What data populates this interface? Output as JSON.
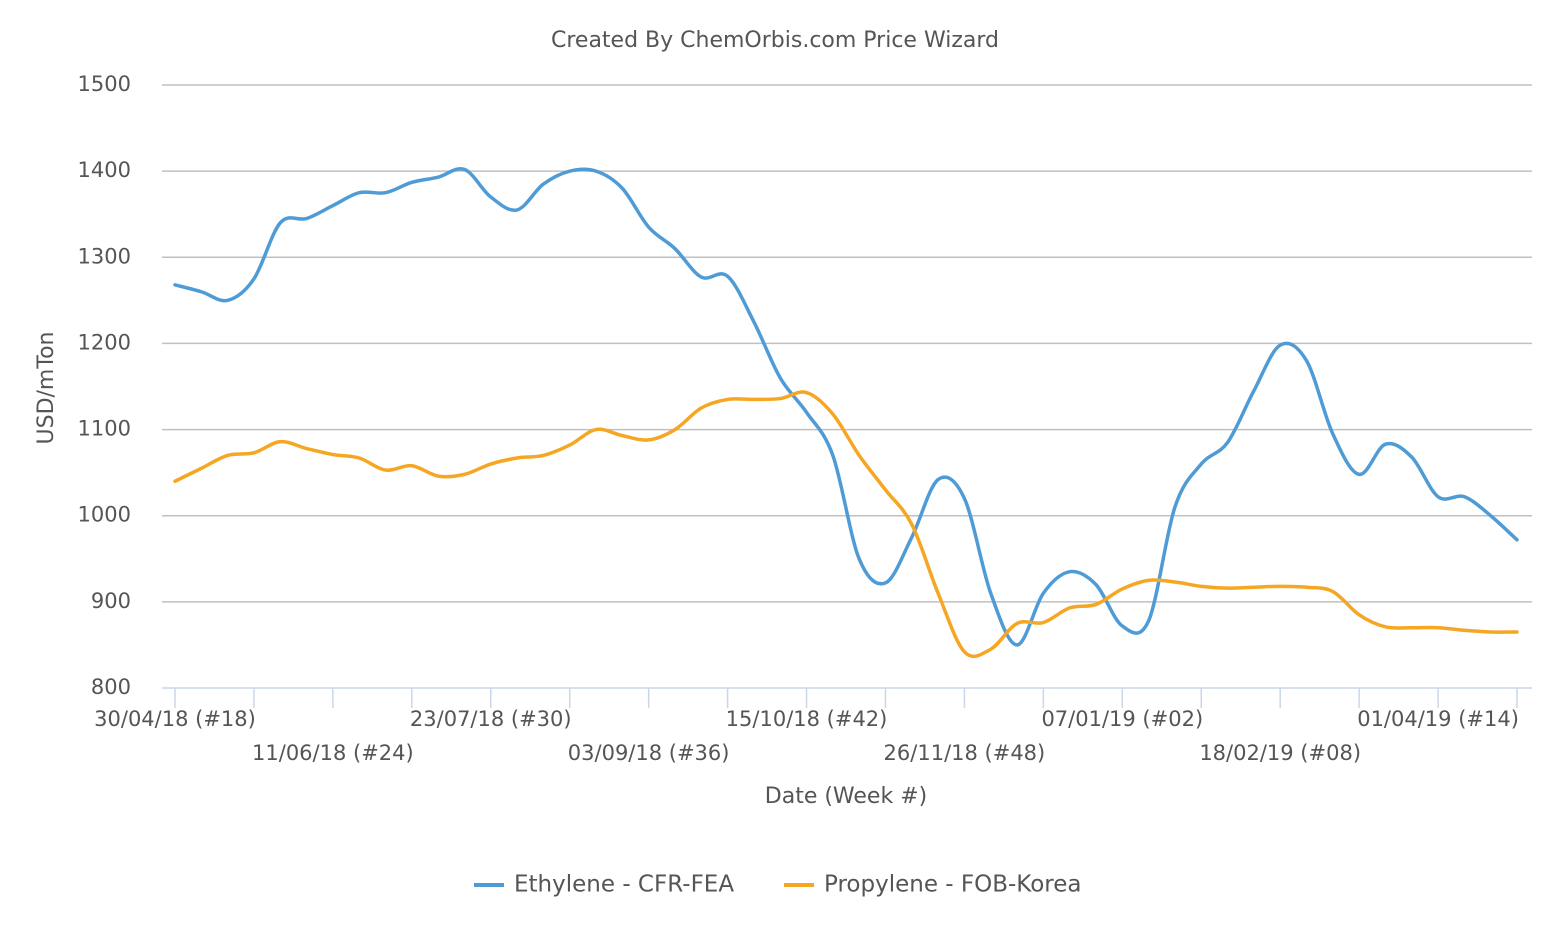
{
  "chart_data": {
    "type": "line",
    "title": "Created By ChemOrbis.com Price Wizard",
    "x_label": "Date (Week #)",
    "y_label": "USD/mTon",
    "categories": [
      "30/04/18 (#18)",
      null,
      null,
      null,
      null,
      null,
      "11/06/18 (#24)",
      null,
      null,
      null,
      null,
      null,
      "23/07/18 (#30)",
      null,
      null,
      null,
      null,
      null,
      "03/09/18 (#36)",
      null,
      null,
      null,
      null,
      null,
      "15/10/18 (#42)",
      null,
      null,
      null,
      null,
      null,
      "26/11/18 (#48)",
      null,
      null,
      null,
      null,
      null,
      "07/01/19 (#02)",
      null,
      null,
      null,
      null,
      null,
      "18/02/19 (#08)",
      null,
      null,
      null,
      null,
      null,
      "01/04/19 (#14)",
      null,
      null,
      null
    ],
    "series": [
      {
        "name": "Ethylene - CFR-FEA",
        "color": "#4e9bd6",
        "values": [
          1268,
          1260,
          1250,
          1275,
          1340,
          1345,
          1360,
          1375,
          1375,
          1387,
          1393,
          1402,
          1370,
          1355,
          1385,
          1400,
          1400,
          1380,
          1335,
          1310,
          1277,
          1278,
          1225,
          1160,
          1120,
          1070,
          950,
          922,
          975,
          1042,
          1020,
          910,
          850,
          910,
          935,
          920,
          872,
          878,
          1010,
          1060,
          1085,
          1145,
          1198,
          1180,
          1095,
          1048,
          1083,
          1068,
          1022,
          1022,
          1000,
          972
        ]
      },
      {
        "name": "Propylene - FOB-Korea",
        "color": "#f5a623",
        "values": [
          1040,
          1055,
          1070,
          1073,
          1086,
          1078,
          1071,
          1067,
          1053,
          1058,
          1046,
          1048,
          1060,
          1067,
          1070,
          1082,
          1100,
          1093,
          1088,
          1100,
          1125,
          1135,
          1135,
          1136,
          1143,
          1118,
          1070,
          1030,
          990,
          910,
          842,
          845,
          875,
          876,
          893,
          897,
          915,
          925,
          923,
          918,
          916,
          917,
          918,
          917,
          912,
          885,
          871,
          870,
          870,
          867,
          865,
          865
        ]
      }
    ],
    "ylim": [
      800,
      1500
    ],
    "yticks": [
      800,
      900,
      1000,
      1100,
      1200,
      1300,
      1400,
      1500
    ],
    "grid": true,
    "legend": "bottom"
  }
}
